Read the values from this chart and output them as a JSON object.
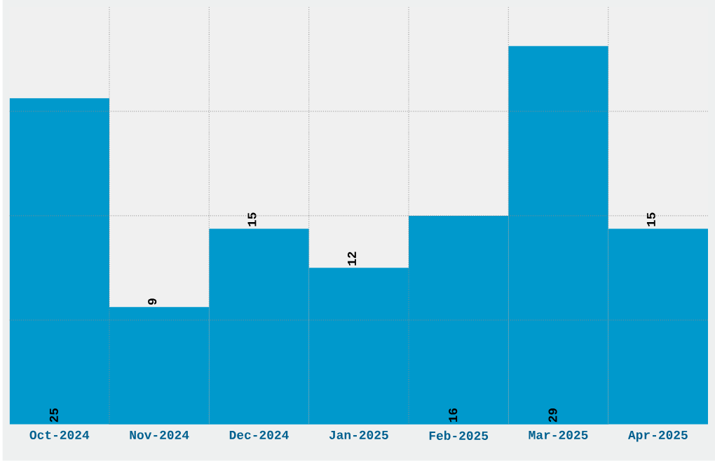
{
  "chart_data": {
    "type": "bar",
    "categories": [
      "Oct-2024",
      "Nov-2024",
      "Dec-2024",
      "Jan-2025",
      "Feb-2025",
      "Mar-2025",
      "Apr-2025"
    ],
    "values": [
      25,
      9,
      15,
      12,
      16,
      29,
      15
    ],
    "color": "#0099cc",
    "ylim": [
      0,
      32
    ],
    "yticks": [
      {
        "value": 8,
        "label": null
      },
      {
        "value": 16,
        "label": null
      },
      {
        "value": 24,
        "label": null
      }
    ],
    "tick_labels": "x",
    "grid": true,
    "data_labels": true
  }
}
